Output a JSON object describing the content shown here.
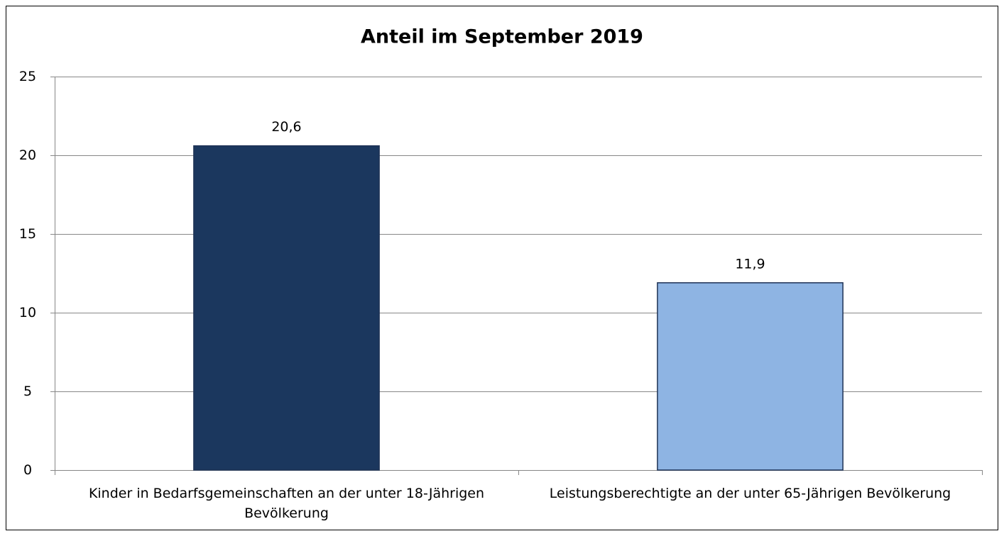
{
  "chart_data": {
    "type": "bar",
    "title": "Anteil im September 2019",
    "categories": [
      "Kinder in Bedarfsgemeinschaften an der unter 18-Jährigen Bevölkerung",
      "Leistungsberechtigte an der unter 65-Jährigen Bevölkerung"
    ],
    "values": [
      20.6,
      11.9
    ],
    "value_labels": [
      "20,6",
      "11,9"
    ],
    "colors": [
      "#1b375e",
      "#8eb4e3"
    ],
    "ylim": [
      0,
      25
    ],
    "yticks": [
      0,
      5,
      10,
      15,
      20,
      25
    ],
    "grid": true
  }
}
